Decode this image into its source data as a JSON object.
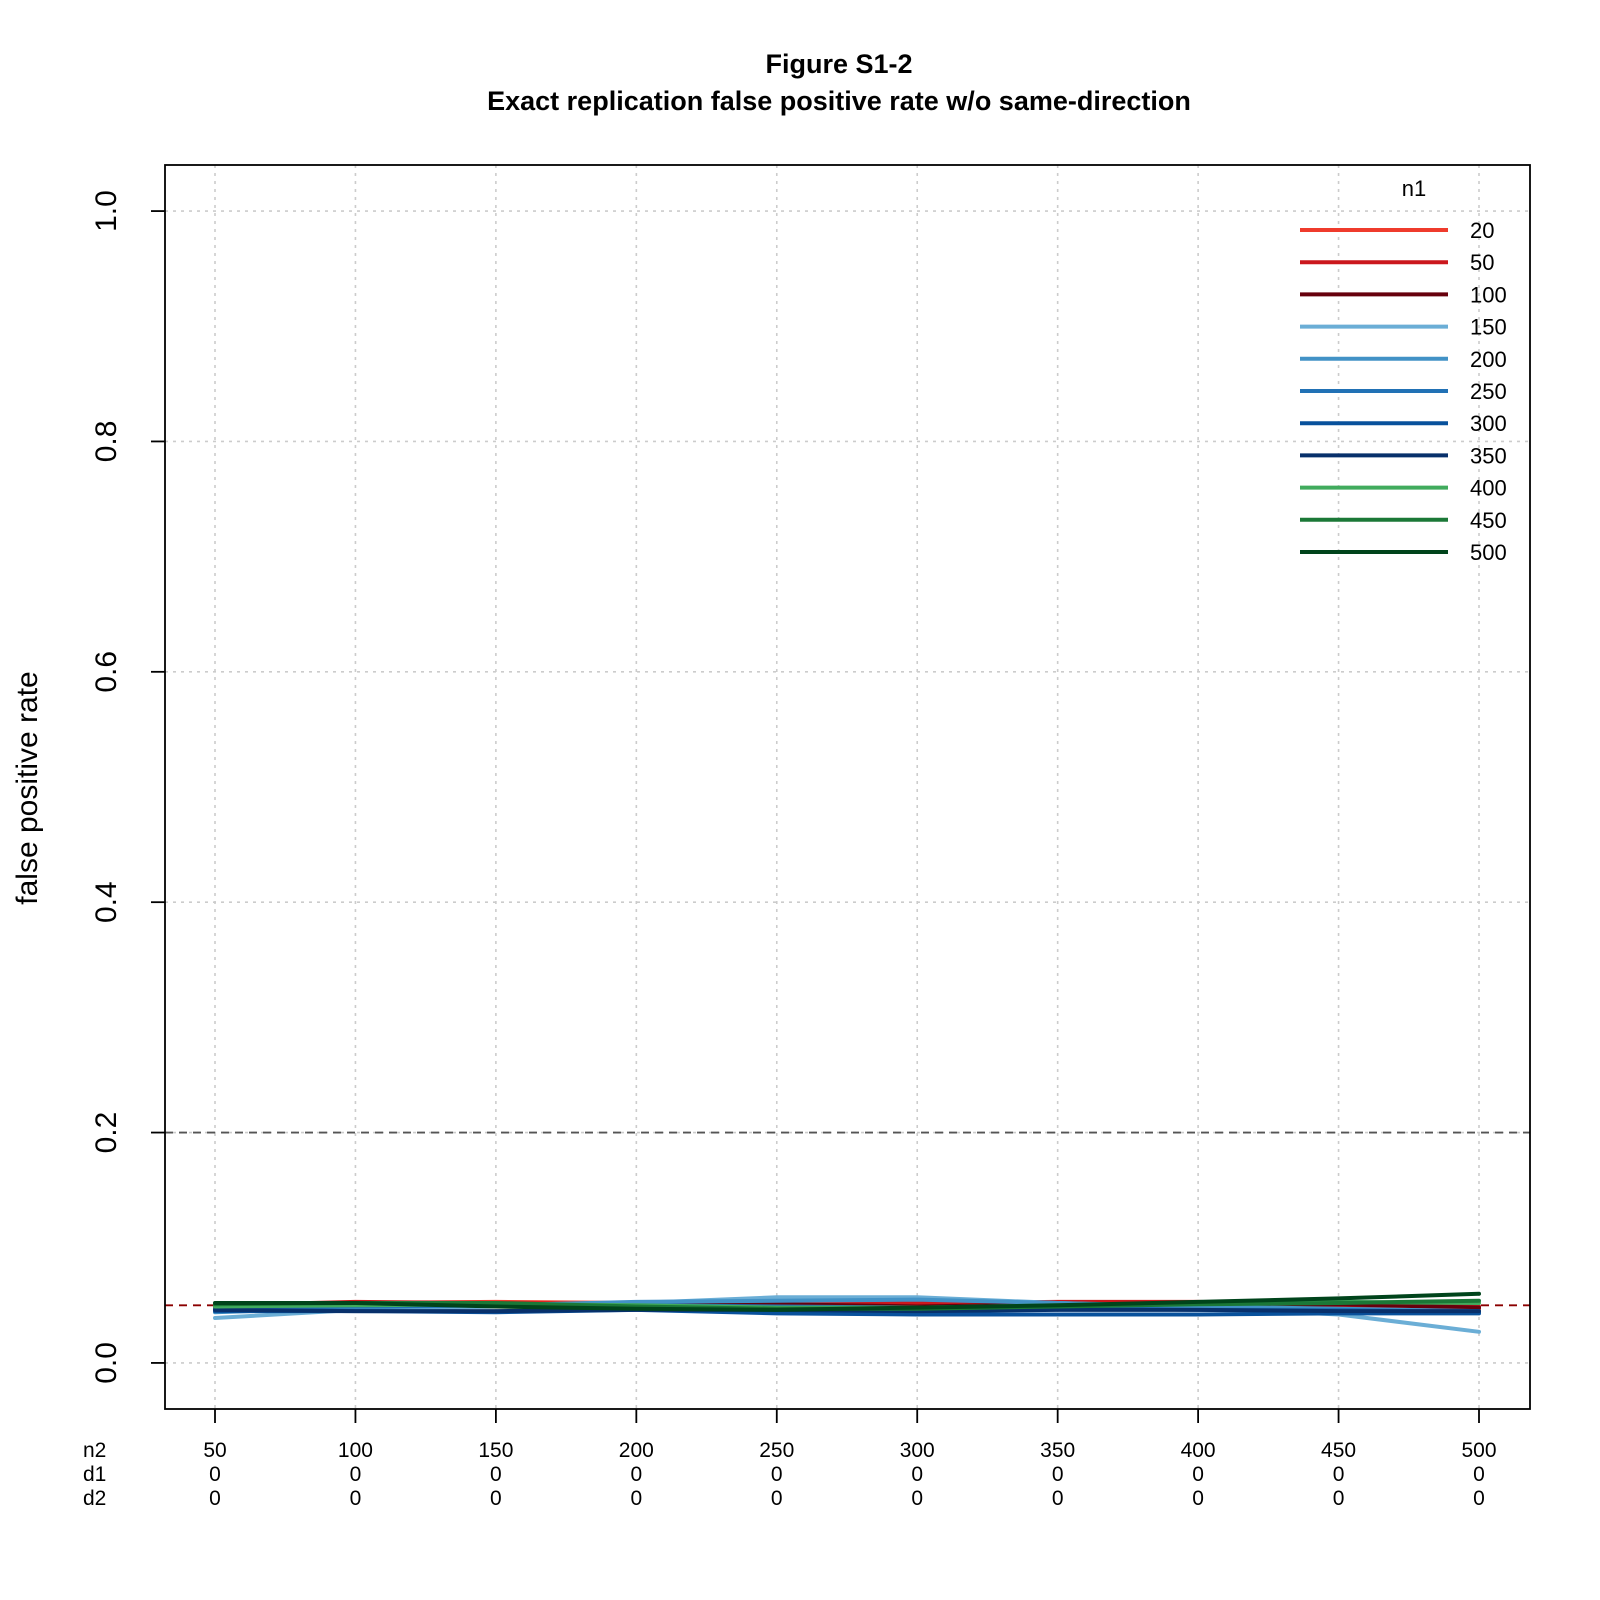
{
  "chart_data": {
    "type": "line",
    "title": "Figure S1-2",
    "subtitle": "Exact replication false positive rate w/o same-direction",
    "ylabel": "false positive rate",
    "xlabel": "",
    "ylim": [
      -0.04,
      1.04
    ],
    "yticks": [
      "0.0",
      "0.2",
      "0.4",
      "0.6",
      "0.8",
      "1.0"
    ],
    "ytick_values": [
      0.0,
      0.2,
      0.4,
      0.6,
      0.8,
      1.0
    ],
    "grid": true,
    "x_rows": [
      {
        "label": "n2",
        "values": [
          "50",
          "100",
          "150",
          "200",
          "250",
          "300",
          "350",
          "400",
          "450",
          "500"
        ]
      },
      {
        "label": "d1",
        "values": [
          "0",
          "0",
          "0",
          "0",
          "0",
          "0",
          "0",
          "0",
          "0",
          "0"
        ]
      },
      {
        "label": "d2",
        "values": [
          "0",
          "0",
          "0",
          "0",
          "0",
          "0",
          "0",
          "0",
          "0",
          "0"
        ]
      }
    ],
    "x": [
      50,
      100,
      150,
      200,
      250,
      300,
      350,
      400,
      450,
      500
    ],
    "reference_lines": [
      {
        "y": 0.2,
        "color": "#555555",
        "style": "dashed"
      },
      {
        "y": 0.05,
        "color": "#8b0000",
        "style": "dashed"
      }
    ],
    "legend": {
      "title": "n1",
      "position": "top-right"
    },
    "series": [
      {
        "name": "20",
        "color": "#ef3b2c",
        "values": [
          0.048,
          0.052,
          0.053,
          0.052,
          0.051,
          0.052,
          0.052,
          0.051,
          0.05,
          0.047
        ]
      },
      {
        "name": "50",
        "color": "#cb181d",
        "values": [
          0.05,
          0.053,
          0.052,
          0.051,
          0.05,
          0.052,
          0.053,
          0.053,
          0.05,
          0.049
        ]
      },
      {
        "name": "100",
        "color": "#67000d",
        "values": [
          0.049,
          0.051,
          0.051,
          0.05,
          0.051,
          0.049,
          0.051,
          0.05,
          0.051,
          0.048
        ]
      },
      {
        "name": "150",
        "color": "#6baed6",
        "values": [
          0.039,
          0.046,
          0.049,
          0.052,
          0.057,
          0.057,
          0.052,
          0.048,
          0.042,
          0.027
        ]
      },
      {
        "name": "200",
        "color": "#4292c6",
        "values": [
          0.044,
          0.048,
          0.05,
          0.053,
          0.054,
          0.055,
          0.052,
          0.049,
          0.047,
          0.045
        ]
      },
      {
        "name": "250",
        "color": "#2171b5",
        "values": [
          0.047,
          0.049,
          0.05,
          0.05,
          0.049,
          0.048,
          0.048,
          0.046,
          0.046,
          0.044
        ]
      },
      {
        "name": "300",
        "color": "#08519c",
        "values": [
          0.045,
          0.045,
          0.044,
          0.046,
          0.043,
          0.042,
          0.042,
          0.042,
          0.043,
          0.043
        ]
      },
      {
        "name": "350",
        "color": "#08306b",
        "values": [
          0.046,
          0.045,
          0.045,
          0.046,
          0.046,
          0.045,
          0.046,
          0.046,
          0.045,
          0.045
        ]
      },
      {
        "name": "400",
        "color": "#41ab5d",
        "values": [
          0.049,
          0.05,
          0.051,
          0.05,
          0.048,
          0.048,
          0.05,
          0.052,
          0.053,
          0.052
        ]
      },
      {
        "name": "450",
        "color": "#1b7837",
        "values": [
          0.051,
          0.052,
          0.052,
          0.049,
          0.047,
          0.047,
          0.049,
          0.051,
          0.052,
          0.054
        ]
      },
      {
        "name": "500",
        "color": "#00441b",
        "values": [
          0.052,
          0.052,
          0.049,
          0.047,
          0.046,
          0.048,
          0.05,
          0.053,
          0.056,
          0.06
        ]
      }
    ]
  }
}
